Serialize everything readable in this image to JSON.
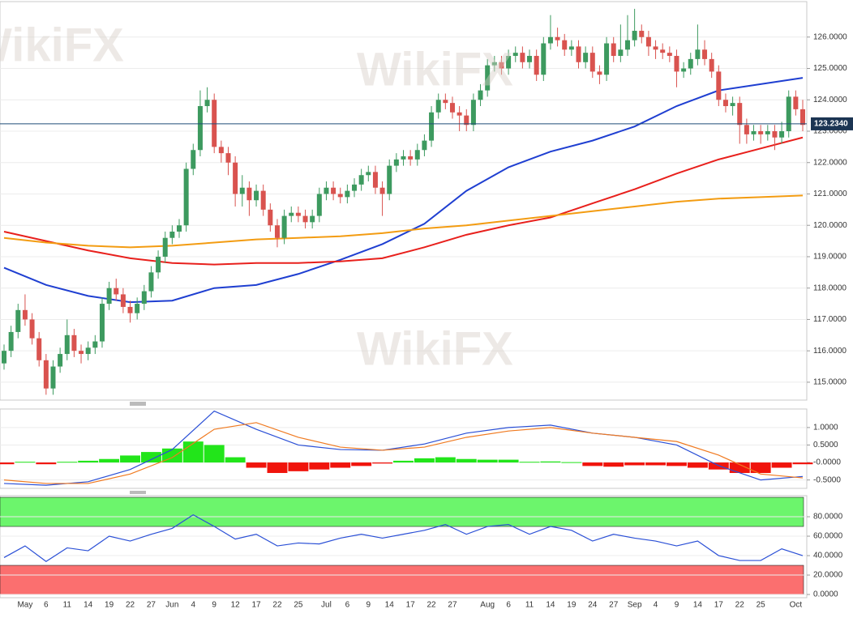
{
  "chart_data": [
    {
      "type": "candlestick",
      "categories": [
        null,
        null,
        null,
        "May",
        null,
        null,
        "6",
        null,
        null,
        "11",
        null,
        null,
        "14",
        null,
        null,
        "19",
        null,
        null,
        "22",
        null,
        null,
        "27",
        null,
        null,
        "Jun",
        null,
        null,
        "4",
        null,
        null,
        "9",
        null,
        null,
        "12",
        null,
        null,
        "17",
        null,
        null,
        "22",
        null,
        null,
        "25",
        null,
        null,
        null,
        "Jul",
        null,
        null,
        "6",
        null,
        null,
        "9",
        null,
        null,
        "14",
        null,
        null,
        "17",
        null,
        null,
        "22",
        null,
        null,
        "27",
        null,
        null,
        null,
        null,
        "Aug",
        null,
        null,
        "6",
        null,
        null,
        "11",
        null,
        null,
        "14",
        null,
        null,
        "19",
        null,
        null,
        "24",
        null,
        null,
        "27",
        null,
        null,
        "Sep",
        null,
        null,
        "4",
        null,
        null,
        "9",
        null,
        null,
        "14",
        null,
        null,
        "17",
        null,
        null,
        "22",
        null,
        null,
        "25",
        null,
        null,
        null,
        null,
        "Oct",
        null
      ],
      "open": [
        115.6,
        116.0,
        116.6,
        117.3,
        117.0,
        116.4,
        115.7,
        114.8,
        115.5,
        115.9,
        116.5,
        116.0,
        115.9,
        116.1,
        116.3,
        117.5,
        118.0,
        117.8,
        117.4,
        117.2,
        117.5,
        117.9,
        118.5,
        119.0,
        119.6,
        119.8,
        120.0,
        121.8,
        122.4,
        123.8,
        124.0,
        122.5,
        122.3,
        122.0,
        121.0,
        121.2,
        120.8,
        121.1,
        120.5,
        120.0,
        119.6,
        120.3,
        120.4,
        120.3,
        120.1,
        120.3,
        121.0,
        121.2,
        121.0,
        120.9,
        121.1,
        121.3,
        121.6,
        121.7,
        121.2,
        121.0,
        121.9,
        122.1,
        122.2,
        122.1,
        122.4,
        122.7,
        123.6,
        124.0,
        123.9,
        123.6,
        123.5,
        123.2,
        124.0,
        124.3,
        125.1,
        125.2,
        125.0,
        125.4,
        125.5,
        125.2,
        125.4,
        124.8,
        125.8,
        126.0,
        125.9,
        125.6,
        125.7,
        125.2,
        125.5,
        124.9,
        124.8,
        125.8,
        125.4,
        125.6,
        125.9,
        126.2,
        126.0,
        125.7,
        125.6,
        125.5,
        125.4,
        124.9,
        125.0,
        125.3,
        125.6,
        125.3,
        124.9,
        124.0,
        123.8,
        123.9,
        123.2,
        122.9,
        123.0,
        122.9,
        123.0,
        122.8,
        123.0,
        124.1,
        123.7
      ],
      "high": [
        116.2,
        116.8,
        117.5,
        117.8,
        117.2,
        116.6,
        115.9,
        115.7,
        116.1,
        117.0,
        116.7,
        116.2,
        116.3,
        116.5,
        117.7,
        118.2,
        118.3,
        118.0,
        117.6,
        117.7,
        118.1,
        118.7,
        119.2,
        119.8,
        120.0,
        120.2,
        122.0,
        122.6,
        124.3,
        124.4,
        124.2,
        122.7,
        122.5,
        122.2,
        121.6,
        121.4,
        121.3,
        121.3,
        120.7,
        120.2,
        120.5,
        120.6,
        120.6,
        120.5,
        120.5,
        121.2,
        121.4,
        121.4,
        121.2,
        121.3,
        121.5,
        121.8,
        121.9,
        121.9,
        121.4,
        122.1,
        122.3,
        122.4,
        122.4,
        122.6,
        122.9,
        123.8,
        124.2,
        124.2,
        124.1,
        123.8,
        123.7,
        124.2,
        124.5,
        125.3,
        125.4,
        125.4,
        125.6,
        125.7,
        125.7,
        125.6,
        125.6,
        126.0,
        126.7,
        126.3,
        126.1,
        125.9,
        125.9,
        125.7,
        125.7,
        125.1,
        126.0,
        126.0,
        126.4,
        126.7,
        126.9,
        126.4,
        126.2,
        125.9,
        125.8,
        125.7,
        125.6,
        125.2,
        125.5,
        126.4,
        125.9,
        125.5,
        125.1,
        124.2,
        124.1,
        124.1,
        123.4,
        123.2,
        123.2,
        123.2,
        123.2,
        123.3,
        124.3,
        124.3,
        124.0
      ],
      "low": [
        115.4,
        115.8,
        116.4,
        116.8,
        116.2,
        115.5,
        114.6,
        114.6,
        115.3,
        115.7,
        115.8,
        115.6,
        115.7,
        115.9,
        116.1,
        117.3,
        117.6,
        117.2,
        116.9,
        117.0,
        117.3,
        117.7,
        118.3,
        118.8,
        119.4,
        119.6,
        119.8,
        121.6,
        122.2,
        123.6,
        122.3,
        122.0,
        121.6,
        120.6,
        120.6,
        120.3,
        120.6,
        120.3,
        119.8,
        119.3,
        119.4,
        120.1,
        120.1,
        119.9,
        119.9,
        120.1,
        120.8,
        120.8,
        120.7,
        120.7,
        120.9,
        121.1,
        121.4,
        121.0,
        120.3,
        120.8,
        121.7,
        121.9,
        121.9,
        121.9,
        122.2,
        122.5,
        123.4,
        123.7,
        123.4,
        123.0,
        123.0,
        123.0,
        123.8,
        124.1,
        124.9,
        124.8,
        124.8,
        125.2,
        125.0,
        125.0,
        124.6,
        124.6,
        125.6,
        125.7,
        125.4,
        125.4,
        125.0,
        125.0,
        124.7,
        124.5,
        124.6,
        125.2,
        125.2,
        125.4,
        125.7,
        125.8,
        125.4,
        125.3,
        125.3,
        125.2,
        124.4,
        124.7,
        124.8,
        125.1,
        125.1,
        124.7,
        123.8,
        123.6,
        123.5,
        122.6,
        122.6,
        122.7,
        122.6,
        122.7,
        122.4,
        122.6,
        122.8,
        123.5,
        123.0
      ],
      "close": [
        116.0,
        116.6,
        117.3,
        117.0,
        116.4,
        115.7,
        114.8,
        115.5,
        115.9,
        116.5,
        116.0,
        115.9,
        116.1,
        116.3,
        117.5,
        118.0,
        117.8,
        117.4,
        117.2,
        117.5,
        117.9,
        118.5,
        119.0,
        119.6,
        119.8,
        120.0,
        121.8,
        122.4,
        123.8,
        124.0,
        122.5,
        122.3,
        122.0,
        121.0,
        121.2,
        120.8,
        121.1,
        120.5,
        120.0,
        119.6,
        120.3,
        120.4,
        120.3,
        120.1,
        120.3,
        121.0,
        121.2,
        121.0,
        120.9,
        121.1,
        121.3,
        121.6,
        121.7,
        121.2,
        121.0,
        121.9,
        122.1,
        122.2,
        122.1,
        122.4,
        122.7,
        123.6,
        124.0,
        123.9,
        123.6,
        123.5,
        123.2,
        124.0,
        124.3,
        125.1,
        125.2,
        125.0,
        125.4,
        125.5,
        125.2,
        125.4,
        124.8,
        125.8,
        126.0,
        125.9,
        125.6,
        125.7,
        125.2,
        125.5,
        124.9,
        124.8,
        125.8,
        125.4,
        125.6,
        125.9,
        126.2,
        126.0,
        125.7,
        125.6,
        125.5,
        125.4,
        124.9,
        125.0,
        125.3,
        125.6,
        125.3,
        124.9,
        124.0,
        123.8,
        123.9,
        123.2,
        122.9,
        123.0,
        122.9,
        123.0,
        122.8,
        123.0,
        124.1,
        123.7,
        123.2
      ],
      "up_color": "#3d9a5f",
      "down_color": "#d9534f",
      "series": [
        {
          "color": "#1f3fd1",
          "x": [
            0,
            6,
            12,
            18,
            24,
            30,
            36,
            42,
            48,
            54,
            60,
            66,
            72,
            78,
            84,
            90,
            96,
            102,
            108,
            114
          ],
          "values": [
            118.65,
            118.1,
            117.75,
            117.55,
            117.6,
            118.0,
            118.1,
            118.45,
            118.9,
            119.4,
            120.05,
            121.1,
            121.85,
            122.35,
            122.7,
            123.15,
            123.8,
            124.3,
            124.5,
            124.7
          ]
        },
        {
          "color": "#e8201c",
          "x": [
            0,
            6,
            12,
            18,
            24,
            30,
            36,
            42,
            48,
            54,
            60,
            66,
            72,
            78,
            84,
            90,
            96,
            102,
            108,
            114
          ],
          "values": [
            119.8,
            119.5,
            119.2,
            118.95,
            118.8,
            118.75,
            118.8,
            118.8,
            118.85,
            118.95,
            119.3,
            119.7,
            120.0,
            120.25,
            120.7,
            121.15,
            121.65,
            122.1,
            122.45,
            122.8
          ]
        },
        {
          "color": "#f39c12",
          "x": [
            0,
            6,
            12,
            18,
            24,
            30,
            36,
            42,
            48,
            54,
            60,
            66,
            72,
            78,
            84,
            90,
            96,
            102,
            108,
            114
          ],
          "values": [
            119.6,
            119.45,
            119.35,
            119.3,
            119.35,
            119.45,
            119.55,
            119.6,
            119.65,
            119.75,
            119.9,
            120.0,
            120.15,
            120.3,
            120.45,
            120.6,
            120.75,
            120.85,
            120.9,
            120.95
          ]
        }
      ],
      "last_price": {
        "value": 123.234,
        "label": "123.2340"
      },
      "ylim": [
        114.43,
        127.13
      ],
      "yticks": [
        {
          "value": 115,
          "label": "115.0000"
        },
        {
          "value": 116,
          "label": "116.0000"
        },
        {
          "value": 117,
          "label": "117.0000"
        },
        {
          "value": 118,
          "label": "118.0000"
        },
        {
          "value": 119,
          "label": "119.0000"
        },
        {
          "value": 120,
          "label": "120.0000"
        },
        {
          "value": 121,
          "label": "121.0000"
        },
        {
          "value": 122,
          "label": "122.0000"
        },
        {
          "value": 123,
          "label": "123.0000"
        },
        {
          "value": 124,
          "label": "124.0000"
        },
        {
          "value": 125,
          "label": "125.0000"
        },
        {
          "value": 126,
          "label": "126.0000"
        }
      ],
      "grid": true
    },
    {
      "type": "macd",
      "hist_x": [
        0,
        3,
        6,
        9,
        12,
        15,
        18,
        21,
        24,
        27,
        30,
        33,
        36,
        39,
        42,
        45,
        48,
        51,
        54,
        57,
        60,
        63,
        66,
        69,
        72,
        75,
        78,
        81,
        84,
        87,
        90,
        93,
        96,
        99,
        102,
        105,
        108,
        111,
        114
      ],
      "histogram": [
        -0.05,
        0.02,
        -0.05,
        0.02,
        0.05,
        0.1,
        0.2,
        0.3,
        0.4,
        0.6,
        0.5,
        0.15,
        -0.15,
        -0.3,
        -0.25,
        -0.2,
        -0.15,
        -0.1,
        -0.03,
        0.05,
        0.12,
        0.15,
        0.1,
        0.08,
        0.08,
        0.02,
        0.03,
        0.01,
        -0.1,
        -0.12,
        -0.08,
        -0.08,
        -0.1,
        -0.15,
        -0.2,
        -0.3,
        -0.3,
        -0.15,
        -0.05
      ],
      "up_color": "#22e51a",
      "down_color": "#f0140c",
      "series": [
        {
          "color": "#2a4fd6",
          "x": [
            0,
            6,
            12,
            18,
            24,
            30,
            36,
            42,
            48,
            54,
            60,
            66,
            72,
            78,
            84,
            90,
            96,
            102,
            108,
            114
          ],
          "values": [
            -0.6,
            -0.65,
            -0.55,
            -0.2,
            0.37,
            1.47,
            0.95,
            0.5,
            0.37,
            0.35,
            0.53,
            0.84,
            1.0,
            1.07,
            0.84,
            0.72,
            0.5,
            -0.09,
            -0.5,
            -0.4
          ]
        },
        {
          "color": "#f07a20",
          "x": [
            0,
            6,
            12,
            18,
            24,
            30,
            36,
            42,
            48,
            54,
            60,
            66,
            72,
            78,
            84,
            90,
            96,
            102,
            108,
            114
          ],
          "values": [
            -0.5,
            -0.6,
            -0.6,
            -0.33,
            0.14,
            0.95,
            1.14,
            0.72,
            0.44,
            0.35,
            0.44,
            0.72,
            0.9,
            1.0,
            0.84,
            0.72,
            0.6,
            0.21,
            -0.33,
            -0.44
          ]
        }
      ],
      "ylim": [
        -0.74,
        1.53
      ],
      "yticks": [
        {
          "value": -0.5,
          "label": "-0.5000"
        },
        {
          "value": 0,
          "label": "-0.0000"
        },
        {
          "value": 0.5,
          "label": "0.5000"
        },
        {
          "value": 1,
          "label": "1.0000"
        }
      ],
      "grid": true
    },
    {
      "type": "rsi",
      "x": [
        0,
        3,
        6,
        9,
        12,
        15,
        18,
        21,
        24,
        27,
        30,
        33,
        36,
        39,
        42,
        45,
        48,
        51,
        54,
        57,
        60,
        63,
        66,
        69,
        72,
        75,
        78,
        81,
        84,
        87,
        90,
        93,
        96,
        99,
        102,
        105,
        108,
        111,
        114
      ],
      "values": [
        38,
        50,
        34,
        48,
        45,
        60,
        55,
        62,
        68,
        82,
        70,
        57,
        62,
        50,
        53,
        52,
        58,
        62,
        58,
        62,
        66,
        72,
        62,
        70,
        72,
        62,
        70,
        66,
        55,
        62,
        58,
        55,
        50,
        55,
        40,
        35,
        35,
        47,
        40
      ],
      "color": "#2a4fd6",
      "overbought": [
        70,
        100
      ],
      "overbought_color": "#6cf56c",
      "oversold": [
        0,
        30
      ],
      "oversold_color": "#fb6f6f",
      "ylim": [
        -3.3,
        101.7
      ],
      "yticks": [
        {
          "value": 0,
          "label": "0.0000"
        },
        {
          "value": 20,
          "label": "20.0000"
        },
        {
          "value": 40,
          "label": "40.0000"
        },
        {
          "value": 60,
          "label": "60.0000"
        },
        {
          "value": 80,
          "label": "80.0000"
        }
      ],
      "grid": true
    }
  ],
  "watermark": "WikiFX"
}
